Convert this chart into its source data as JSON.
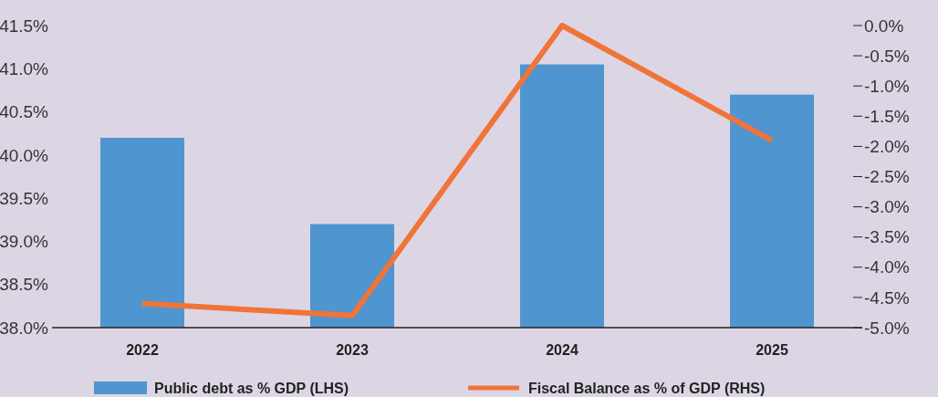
{
  "chart_data": {
    "type": "bar",
    "categories": [
      "2022",
      "2023",
      "2024",
      "2025"
    ],
    "series": [
      {
        "name": "Public debt as % GDP (LHS)",
        "color": "#4f95d0",
        "values": [
          40.2,
          39.2,
          41.05,
          40.7
        ]
      },
      {
        "name": "Fiscal Balance as % of GDP (RHS)",
        "type": "line",
        "axis": "y2",
        "color": "#f0743a",
        "values": [
          -4.6,
          -4.8,
          0.0,
          -1.9
        ]
      }
    ],
    "ylim": [
      38,
      41.5
    ],
    "yticks": [
      {
        "value": 38,
        "label": "38.0%"
      },
      {
        "value": 38.5,
        "label": "38.5%"
      },
      {
        "value": 39,
        "label": "39.0%"
      },
      {
        "value": 39.5,
        "label": "39.5%"
      },
      {
        "value": 40,
        "label": "40.0%"
      },
      {
        "value": 40.5,
        "label": "40.5%"
      },
      {
        "value": 41,
        "label": "41.0%"
      },
      {
        "value": 41.5,
        "label": "41.5%"
      }
    ],
    "y2lim": [
      -5,
      0
    ],
    "y2ticks": [
      {
        "value": -5,
        "label": "-5.0%"
      },
      {
        "value": -4.5,
        "label": "-4.5%"
      },
      {
        "value": -4,
        "label": "-4.0%"
      },
      {
        "value": -3.5,
        "label": "-3.5%"
      },
      {
        "value": -3,
        "label": "-3.0%"
      },
      {
        "value": -2.5,
        "label": "-2.5%"
      },
      {
        "value": -2,
        "label": "-2.0%"
      },
      {
        "value": -1.5,
        "label": "-1.5%"
      },
      {
        "value": -1,
        "label": "-1.0%"
      },
      {
        "value": -0.5,
        "label": "-0.5%"
      },
      {
        "value": 0,
        "label": "0.0%"
      }
    ],
    "grid": false,
    "legend": "bottom"
  }
}
